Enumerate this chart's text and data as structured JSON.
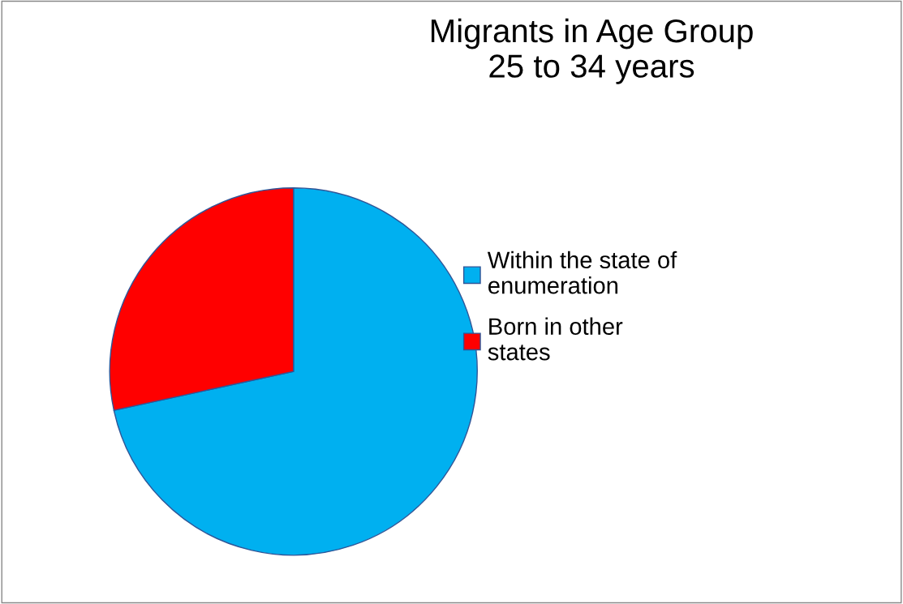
{
  "chart_data": {
    "type": "pie",
    "title": "Migrants in Age Group\n25 to 34 years",
    "categories": [
      "Within the state of\nenumeration",
      "Born in other\nstates"
    ],
    "values": [
      71.6,
      28.4
    ],
    "colors": [
      "#00b0f0",
      "#ff0000"
    ],
    "legend": "right"
  }
}
